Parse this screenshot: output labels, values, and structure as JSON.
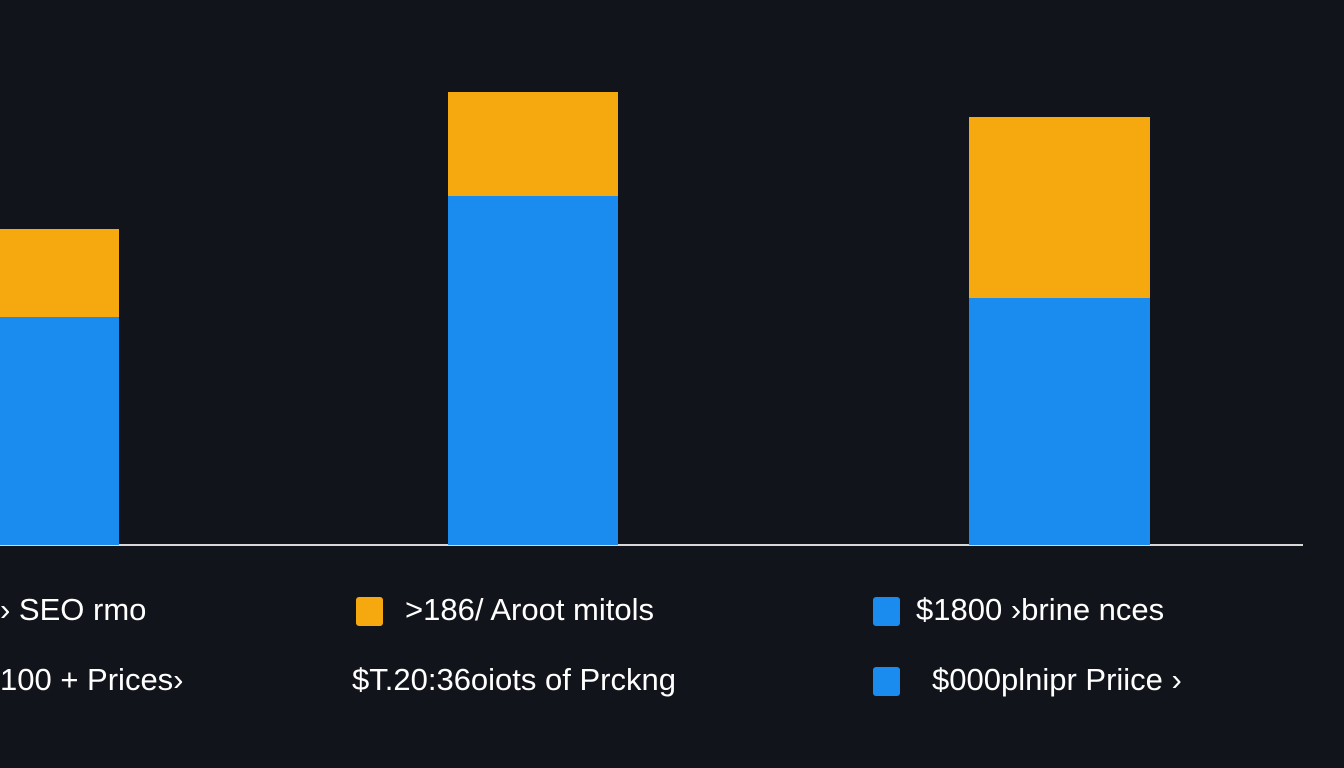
{
  "chart_data": {
    "type": "stacked_bar",
    "categories": [
      null,
      null,
      null
    ],
    "series": [
      {
        "color": "#1a8cf0",
        "values": [
          228,
          349,
          247
        ]
      },
      {
        "color": "#f6a80f",
        "values": [
          88,
          104,
          181
        ]
      }
    ],
    "ylim": [
      0,
      500
    ],
    "legend": [
      {
        "label": "› SEO rmo"
      },
      {
        "label": ">186/ Aroot mitols",
        "color": "#f6a80f"
      },
      {
        "label": "$1800 ›brine nces",
        "color": "#1a8cf0"
      },
      {
        "label": "100 + Prices›"
      },
      {
        "label": "$T.20:36oiots of Prckng"
      },
      {
        "label": "$000plnipr Priice ›",
        "color": "#1a8cf0"
      }
    ]
  }
}
